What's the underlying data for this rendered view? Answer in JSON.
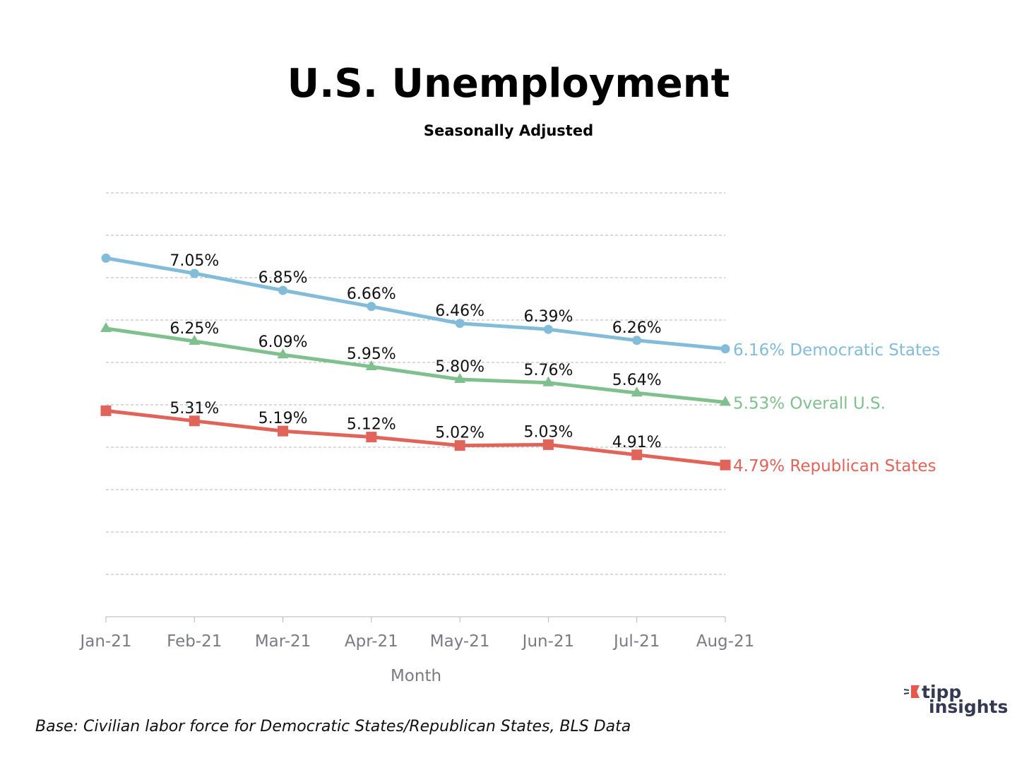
{
  "chart_data": {
    "type": "line",
    "title": "U.S. Unemployment",
    "subtitle": "Seasonally Adjusted",
    "xlabel": "Month",
    "ylabel": "",
    "categories": [
      "Jan-21",
      "Feb-21",
      "Mar-21",
      "Apr-21",
      "May-21",
      "Jun-21",
      "Jul-21",
      "Aug-21"
    ],
    "ylim": [
      3,
      8
    ],
    "grid": true,
    "series": [
      {
        "name": "Democratic States",
        "color": "#82bcd9",
        "marker": "circle",
        "values": [
          7.23,
          7.05,
          6.85,
          6.66,
          6.46,
          6.39,
          6.26,
          6.16
        ],
        "labels": [
          "",
          "7.05%",
          "6.85%",
          "6.66%",
          "6.46%",
          "6.39%",
          "6.26%",
          "6.16%"
        ],
        "end_label": "6.16% Democratic States"
      },
      {
        "name": "Overall U.S.",
        "color": "#80bf8e",
        "marker": "triangle",
        "values": [
          6.4,
          6.25,
          6.09,
          5.95,
          5.8,
          5.76,
          5.64,
          5.53
        ],
        "labels": [
          "",
          "6.25%",
          "6.09%",
          "5.95%",
          "5.80%",
          "5.76%",
          "5.64%",
          "5.53%"
        ],
        "end_label": "5.53% Overall U.S."
      },
      {
        "name": "Republican States",
        "color": "#e0645a",
        "marker": "square",
        "values": [
          5.43,
          5.31,
          5.19,
          5.12,
          5.02,
          5.03,
          4.91,
          4.79
        ],
        "labels": [
          "",
          "5.31%",
          "5.19%",
          "5.12%",
          "5.02%",
          "5.03%",
          "4.91%",
          "4.79%"
        ],
        "end_label": "4.79% Republican States"
      }
    ],
    "footnote": "Base: Civilian labor force for Democratic States/Republican States, BLS Data",
    "logo": {
      "line1": "tipp",
      "line2": "insights",
      "accent": "#e8574d"
    }
  }
}
